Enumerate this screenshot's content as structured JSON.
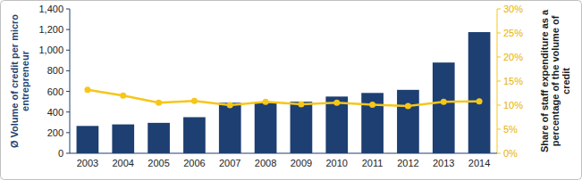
{
  "chart_data": {
    "type": "bar",
    "y_label": "Ø Volume of credit per micro entrepreneur",
    "y2_label": "Share of staff expenditure as a percentage of the volume of credit",
    "categories": [
      "2003",
      "2004",
      "2005",
      "2006",
      "2007",
      "2008",
      "2009",
      "2010",
      "2011",
      "2012",
      "2013",
      "2014"
    ],
    "series": [
      {
        "type": "bar",
        "color": "#1d3f72",
        "values": [
          265,
          280,
          295,
          350,
          490,
          490,
          500,
          550,
          585,
          615,
          880,
          1175
        ]
      },
      {
        "type": "line",
        "axis": "y2",
        "color": "#f6c619",
        "marker": "circle",
        "values": [
          13.2,
          12,
          10.5,
          10.9,
          10,
          10.7,
          10.2,
          10.5,
          10.1,
          9.8,
          10.7,
          10.8
        ]
      }
    ],
    "ylim": [
      0,
      1400
    ],
    "yticks": [
      0,
      200,
      400,
      600,
      800,
      {
        "value": 1000,
        "label": "1,000"
      },
      {
        "value": 1200,
        "label": "1,200"
      },
      {
        "value": 1400,
        "label": "1,400"
      }
    ],
    "y2lim": [
      0,
      30
    ],
    "y2ticks": [
      {
        "value": 0,
        "label": "0%"
      },
      {
        "value": 5,
        "label": "5%"
      },
      {
        "value": 10,
        "label": "10%"
      },
      {
        "value": 15,
        "label": "15%"
      },
      {
        "value": 20,
        "label": "20%"
      },
      {
        "value": 25,
        "label": "25%"
      },
      {
        "value": 30,
        "label": "30%"
      }
    ],
    "grid": false
  }
}
